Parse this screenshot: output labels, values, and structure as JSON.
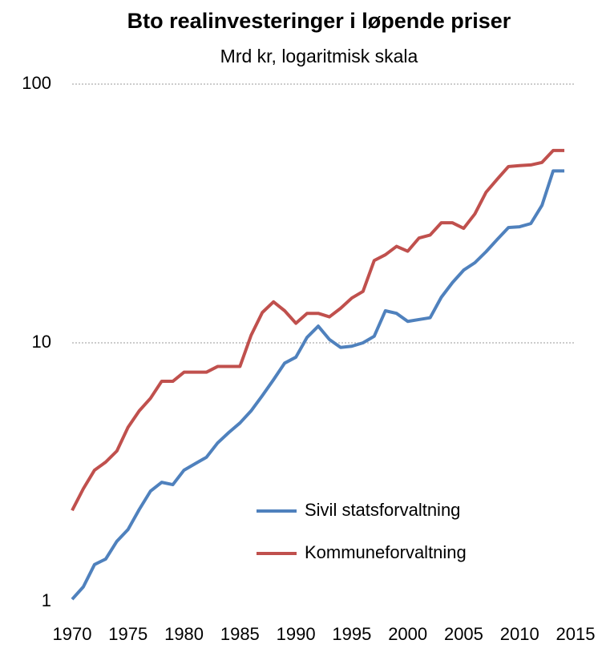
{
  "chart_data": {
    "type": "line",
    "title": "Bto realinvesteringer i løpende priser",
    "subtitle": "Mrd kr, logaritmisk skala",
    "x": [
      1970,
      1971,
      1972,
      1973,
      1974,
      1975,
      1976,
      1977,
      1978,
      1979,
      1980,
      1981,
      1982,
      1983,
      1984,
      1985,
      1986,
      1987,
      1988,
      1989,
      1990,
      1991,
      1992,
      1993,
      1994,
      1995,
      1996,
      1997,
      1998,
      1999,
      2000,
      2001,
      2002,
      2003,
      2004,
      2005,
      2006,
      2007,
      2008,
      2009,
      2010,
      2011,
      2012,
      2013,
      2014
    ],
    "series": [
      {
        "name": "Sivil statsforvaltning",
        "color": "#4f81bd",
        "values": [
          1.02,
          1.14,
          1.39,
          1.46,
          1.71,
          1.9,
          2.27,
          2.67,
          2.89,
          2.83,
          3.22,
          3.41,
          3.61,
          4.1,
          4.5,
          4.9,
          5.46,
          6.25,
          7.2,
          8.35,
          8.8,
          10.5,
          11.6,
          10.3,
          9.6,
          9.7,
          10.0,
          10.6,
          13.3,
          13.0,
          12.1,
          12.3,
          12.5,
          15.0,
          17.1,
          19.1,
          20.4,
          22.5,
          25.1,
          27.9,
          28.1,
          28.9,
          34.0,
          46.2,
          46.2
        ]
      },
      {
        "name": "Kommuneforvaltning",
        "color": "#c0504d",
        "values": [
          2.25,
          2.73,
          3.22,
          3.46,
          3.82,
          4.72,
          5.46,
          6.1,
          7.1,
          7.1,
          7.7,
          7.7,
          7.7,
          8.1,
          8.1,
          8.1,
          10.7,
          13.1,
          14.4,
          13.3,
          11.9,
          13.0,
          13.0,
          12.6,
          13.6,
          14.9,
          15.8,
          20.8,
          21.9,
          23.6,
          22.6,
          25.4,
          26.1,
          29.1,
          29.1,
          27.7,
          31.5,
          38.2,
          42.9,
          48.0,
          48.4,
          48.7,
          49.8,
          55.4,
          55.4
        ]
      }
    ],
    "xlim": [
      1970,
      2015
    ],
    "xticks": [
      1970,
      1975,
      1980,
      1985,
      1990,
      1995,
      2000,
      2005,
      2010,
      2015
    ],
    "ylim": [
      1,
      100
    ],
    "yticks": [
      1,
      10,
      100
    ],
    "log_y": true,
    "grid": true
  }
}
